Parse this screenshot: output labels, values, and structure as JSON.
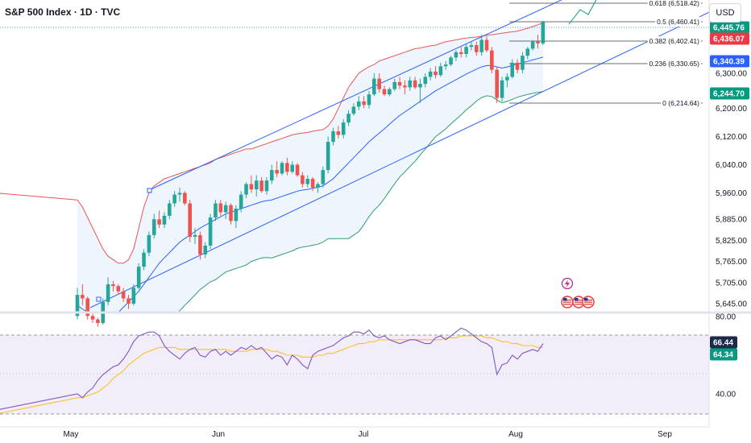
{
  "header": {
    "title": "S&P 500 Index · 1D · TVC",
    "currency": "USD"
  },
  "colors": {
    "up": "#26a69a",
    "down": "#ef5350",
    "channel": "#2962ff",
    "bb_upper": "#e65757",
    "bb_basis": "#2962ff",
    "bb_lower": "#2f9e6e",
    "bb_fill": "#e8f1fc",
    "rsi": "#7e57c2",
    "rsi_ma": "#fbc02d",
    "rsi_band": "#ede7f6",
    "fib": "#3d3d3d",
    "green_tag": "#089981",
    "red_tag": "#f23645",
    "blue_tag": "#2962ff",
    "dark_tag": "#1e2a4a"
  },
  "chart_data": {
    "type": "candlestick",
    "price_ticks": [
      "5,645.00",
      "5,705.00",
      "5,765.00",
      "5,825.00",
      "5,885.00",
      "5,960.00",
      "6,040.00",
      "6,120.00",
      "6,200.00",
      "6,300.00"
    ],
    "rsi_ticks": [
      "80.00",
      "40.00"
    ],
    "x_labels": [
      "May",
      "Jun",
      "Jul",
      "Aug",
      "Sep"
    ],
    "price_tags": [
      {
        "label": "6,445.76",
        "color": "green_tag"
      },
      {
        "label": "6,436.07",
        "color": "red_tag"
      },
      {
        "label": "6,340.39",
        "color": "blue_tag"
      },
      {
        "label": "6,244.70",
        "color": "green_tag"
      }
    ],
    "rsi_tags": [
      {
        "label": "66.44",
        "color": "dark_tag"
      },
      {
        "label": "64.34",
        "color": "green_tag"
      }
    ],
    "fib_levels": [
      {
        "label": "0.618 (6,518.42)",
        "price": 6518.42
      },
      {
        "label": "0.5 (6,460.41)",
        "price": 6460.41
      },
      {
        "label": "0.382 (6,402.41)",
        "price": 6402.41
      },
      {
        "label": "0.236 (6,330.65)",
        "price": 6330.65
      },
      {
        "label": "0 (6,214.64)",
        "price": 6214.64
      }
    ],
    "candles": [
      [
        5610,
        5690,
        5600,
        5670
      ],
      [
        5670,
        5700,
        5640,
        5660
      ],
      [
        5660,
        5665,
        5600,
        5610
      ],
      [
        5610,
        5620,
        5590,
        5600
      ],
      [
        5600,
        5605,
        5580,
        5590
      ],
      [
        5590,
        5660,
        5585,
        5650
      ],
      [
        5650,
        5720,
        5640,
        5700
      ],
      [
        5700,
        5710,
        5680,
        5695
      ],
      [
        5695,
        5700,
        5670,
        5680
      ],
      [
        5680,
        5690,
        5650,
        5660
      ],
      [
        5660,
        5670,
        5630,
        5645
      ],
      [
        5645,
        5700,
        5640,
        5690
      ],
      [
        5690,
        5760,
        5685,
        5750
      ],
      [
        5750,
        5800,
        5740,
        5790
      ],
      [
        5790,
        5850,
        5780,
        5840
      ],
      [
        5840,
        5900,
        5830,
        5885
      ],
      [
        5885,
        5910,
        5860,
        5870
      ],
      [
        5870,
        5905,
        5860,
        5895
      ],
      [
        5895,
        5940,
        5885,
        5930
      ],
      [
        5930,
        5965,
        5920,
        5955
      ],
      [
        5955,
        5975,
        5935,
        5960
      ],
      [
        5960,
        5965,
        5925,
        5930
      ],
      [
        5930,
        5940,
        5820,
        5835
      ],
      [
        5835,
        5860,
        5815,
        5840
      ],
      [
        5840,
        5850,
        5770,
        5785
      ],
      [
        5785,
        5820,
        5775,
        5810
      ],
      [
        5810,
        5900,
        5800,
        5890
      ],
      [
        5890,
        5940,
        5880,
        5930
      ],
      [
        5930,
        5940,
        5895,
        5905
      ],
      [
        5905,
        5935,
        5885,
        5925
      ],
      [
        5925,
        5930,
        5870,
        5880
      ],
      [
        5880,
        5925,
        5860,
        5915
      ],
      [
        5915,
        5965,
        5905,
        5955
      ],
      [
        5955,
        5990,
        5945,
        5985
      ],
      [
        5985,
        6010,
        5960,
        5970
      ],
      [
        5970,
        6010,
        5950,
        5995
      ],
      [
        5995,
        6005,
        5960,
        5965
      ],
      [
        5965,
        6005,
        5955,
        5995
      ],
      [
        5995,
        6040,
        5985,
        6025
      ],
      [
        6025,
        6050,
        6005,
        6015
      ],
      [
        6015,
        6050,
        6010,
        6045
      ],
      [
        6045,
        6060,
        6010,
        6020
      ],
      [
        6020,
        6050,
        6015,
        6040
      ],
      [
        6040,
        6045,
        6005,
        6010
      ],
      [
        6010,
        6020,
        5975,
        5985
      ],
      [
        5985,
        6010,
        5975,
        6000
      ],
      [
        6000,
        6005,
        5965,
        5975
      ],
      [
        5975,
        5990,
        5960,
        5985
      ],
      [
        5985,
        6035,
        5975,
        6025
      ],
      [
        6025,
        6120,
        6015,
        6105
      ],
      [
        6105,
        6145,
        6095,
        6135
      ],
      [
        6135,
        6150,
        6115,
        6125
      ],
      [
        6125,
        6170,
        6115,
        6160
      ],
      [
        6160,
        6195,
        6150,
        6185
      ],
      [
        6185,
        6215,
        6180,
        6205
      ],
      [
        6205,
        6235,
        6195,
        6220
      ],
      [
        6220,
        6235,
        6200,
        6210
      ],
      [
        6210,
        6250,
        6200,
        6240
      ],
      [
        6240,
        6300,
        6235,
        6285
      ],
      [
        6285,
        6300,
        6245,
        6255
      ],
      [
        6255,
        6265,
        6235,
        6240
      ],
      [
        6240,
        6260,
        6235,
        6255
      ],
      [
        6255,
        6285,
        6250,
        6275
      ],
      [
        6275,
        6290,
        6255,
        6265
      ],
      [
        6265,
        6280,
        6240,
        6260
      ],
      [
        6260,
        6290,
        6250,
        6280
      ],
      [
        6280,
        6290,
        6255,
        6260
      ],
      [
        6260,
        6285,
        6215,
        6270
      ],
      [
        6270,
        6300,
        6260,
        6290
      ],
      [
        6290,
        6315,
        6280,
        6305
      ],
      [
        6305,
        6320,
        6285,
        6295
      ],
      [
        6295,
        6330,
        6290,
        6320
      ],
      [
        6320,
        6335,
        6310,
        6325
      ],
      [
        6325,
        6350,
        6320,
        6345
      ],
      [
        6345,
        6365,
        6335,
        6360
      ],
      [
        6360,
        6375,
        6345,
        6355
      ],
      [
        6355,
        6385,
        6345,
        6375
      ],
      [
        6375,
        6390,
        6365,
        6380
      ],
      [
        6380,
        6390,
        6350,
        6360
      ],
      [
        6360,
        6410,
        6350,
        6395
      ],
      [
        6395,
        6405,
        6360,
        6365
      ],
      [
        6365,
        6375,
        6300,
        6310
      ],
      [
        6310,
        6320,
        6215,
        6230
      ],
      [
        6230,
        6290,
        6220,
        6280
      ],
      [
        6280,
        6300,
        6260,
        6290
      ],
      [
        6290,
        6340,
        6285,
        6330
      ],
      [
        6330,
        6340,
        6300,
        6310
      ],
      [
        6310,
        6360,
        6300,
        6350
      ],
      [
        6350,
        6375,
        6340,
        6370
      ],
      [
        6370,
        6395,
        6365,
        6390
      ],
      [
        6390,
        6410,
        6370,
        6385
      ],
      [
        6385,
        6450,
        6380,
        6446
      ]
    ],
    "bb_upper": [
      5940,
      5920,
      5890,
      5860,
      5830,
      5800,
      5780,
      5770,
      5760,
      5760,
      5770,
      5800,
      5860,
      5920,
      5960,
      5980,
      5990,
      6000,
      6005,
      6010,
      6015,
      6020,
      6025,
      6030,
      6035,
      6040,
      6045,
      6055,
      6060,
      6065,
      6070,
      6075,
      6080,
      6085,
      6085,
      6090,
      6095,
      6100,
      6105,
      6110,
      6115,
      6120,
      6125,
      6128,
      6130,
      6132,
      6135,
      6138,
      6140,
      6150,
      6170,
      6200,
      6230,
      6260,
      6280,
      6300,
      6310,
      6318,
      6325,
      6335,
      6340,
      6345,
      6350,
      6355,
      6360,
      6365,
      6370,
      6372,
      6375,
      6378,
      6380,
      6385,
      6390,
      6392,
      6395,
      6398,
      6400,
      6402,
      6403,
      6405,
      6408,
      6410,
      6412,
      6414,
      6416,
      6418,
      6420,
      6424,
      6428,
      6433,
      6438,
      6444
    ],
    "bb_basis": [
      5640,
      5630,
      5620,
      5610,
      5600,
      5595,
      5600,
      5610,
      5620,
      5635,
      5650,
      5665,
      5680,
      5700,
      5720,
      5740,
      5760,
      5775,
      5790,
      5805,
      5820,
      5830,
      5840,
      5850,
      5860,
      5868,
      5876,
      5884,
      5892,
      5900,
      5905,
      5910,
      5915,
      5920,
      5925,
      5930,
      5935,
      5938,
      5940,
      5945,
      5950,
      5955,
      5960,
      5965,
      5968,
      5970,
      5973,
      5976,
      5980,
      5990,
      6000,
      6015,
      6030,
      6045,
      6060,
      6075,
      6090,
      6105,
      6118,
      6130,
      6142,
      6155,
      6168,
      6180,
      6190,
      6200,
      6210,
      6220,
      6230,
      6240,
      6250,
      6258,
      6266,
      6274,
      6282,
      6290,
      6298,
      6305,
      6312,
      6318,
      6322,
      6322,
      6318,
      6315,
      6318,
      6322,
      6326,
      6330,
      6334,
      6338,
      6342,
      6346
    ],
    "bb_lower": [
      5340,
      5340,
      5350,
      5360,
      5370,
      5390,
      5420,
      5450,
      5480,
      5510,
      5530,
      5530,
      5500,
      5480,
      5480,
      5500,
      5530,
      5550,
      5575,
      5600,
      5625,
      5640,
      5655,
      5670,
      5685,
      5696,
      5707,
      5713,
      5724,
      5735,
      5740,
      5745,
      5750,
      5755,
      5765,
      5770,
      5775,
      5776,
      5775,
      5780,
      5785,
      5790,
      5795,
      5802,
      5806,
      5808,
      5811,
      5814,
      5820,
      5830,
      5830,
      5830,
      5830,
      5830,
      5840,
      5850,
      5870,
      5892,
      5911,
      5925,
      5944,
      5965,
      5986,
      6005,
      6020,
      6035,
      6050,
      6068,
      6085,
      6102,
      6120,
      6131,
      6142,
      6156,
      6169,
      6182,
      6196,
      6208,
      6221,
      6231,
      6236,
      6234,
      6224,
      6216,
      6220,
      6226,
      6232,
      6236,
      6240,
      6243,
      6246,
      6248
    ],
    "rsi": [
      40,
      38,
      41,
      43,
      47,
      50,
      52,
      54,
      55,
      58,
      62,
      67,
      70,
      71,
      72,
      72,
      70,
      65,
      62,
      60,
      58,
      61,
      63,
      64,
      60,
      59,
      62,
      63,
      60,
      62,
      60,
      62,
      64,
      63,
      65,
      63,
      64,
      61,
      58,
      60,
      59,
      55,
      60,
      58,
      55,
      53,
      60,
      62,
      63,
      64,
      65,
      67,
      69,
      70,
      72,
      72,
      71,
      73,
      70,
      69,
      70,
      68,
      67,
      66,
      67,
      68,
      68,
      67,
      66,
      66,
      69,
      70,
      68,
      70,
      72,
      74,
      73,
      71,
      69,
      67,
      66,
      64,
      50,
      55,
      56,
      60,
      58,
      61,
      62,
      63,
      62,
      66
    ],
    "rsi_ma": [
      38,
      38,
      39,
      40,
      41,
      43,
      45,
      48,
      50,
      52,
      55,
      57,
      59,
      61,
      62,
      63,
      64,
      64,
      64,
      64,
      63,
      63,
      63,
      63,
      63,
      63,
      63,
      63,
      63,
      63,
      62,
      62,
      62,
      62,
      63,
      63,
      63,
      63,
      62,
      62,
      61,
      60,
      60,
      60,
      59,
      59,
      59,
      60,
      60,
      61,
      61,
      62,
      63,
      64,
      65,
      66,
      66,
      67,
      67,
      68,
      68,
      68,
      68,
      68,
      68,
      68,
      68,
      68,
      68,
      68,
      68,
      68,
      69,
      69,
      69,
      70,
      70,
      70,
      70,
      70,
      69,
      69,
      68,
      67,
      67,
      66,
      66,
      65,
      65,
      65,
      64,
      64
    ]
  }
}
